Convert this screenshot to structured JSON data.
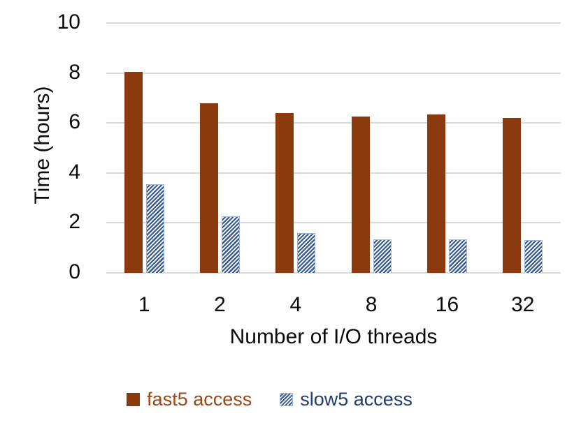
{
  "chart_data": {
    "type": "bar",
    "title": "",
    "categories": [
      "1",
      "2",
      "4",
      "8",
      "16",
      "32"
    ],
    "series": [
      {
        "name": "fast5 access",
        "values": [
          8.05,
          6.8,
          6.4,
          6.25,
          6.35,
          6.2
        ],
        "color": "#8B3A0E",
        "pattern": "solid",
        "label_color": "#9C4616"
      },
      {
        "name": "slow5 access",
        "values": [
          3.55,
          2.25,
          1.6,
          1.35,
          1.35,
          1.3
        ],
        "color": "#375A93",
        "pattern": "diagonal-hatch",
        "label_color": "#1F3C6E"
      }
    ],
    "xlabel": "Number of I/O threads",
    "ylabel": "Time (hours)",
    "ylim": [
      0,
      10
    ],
    "yticks": [
      0,
      2,
      4,
      6,
      8,
      10
    ],
    "grid": "horizontal-gridlines",
    "gridline_color": "#D9D9D9",
    "legend_position": "bottom",
    "background": "#FFFFFF"
  }
}
